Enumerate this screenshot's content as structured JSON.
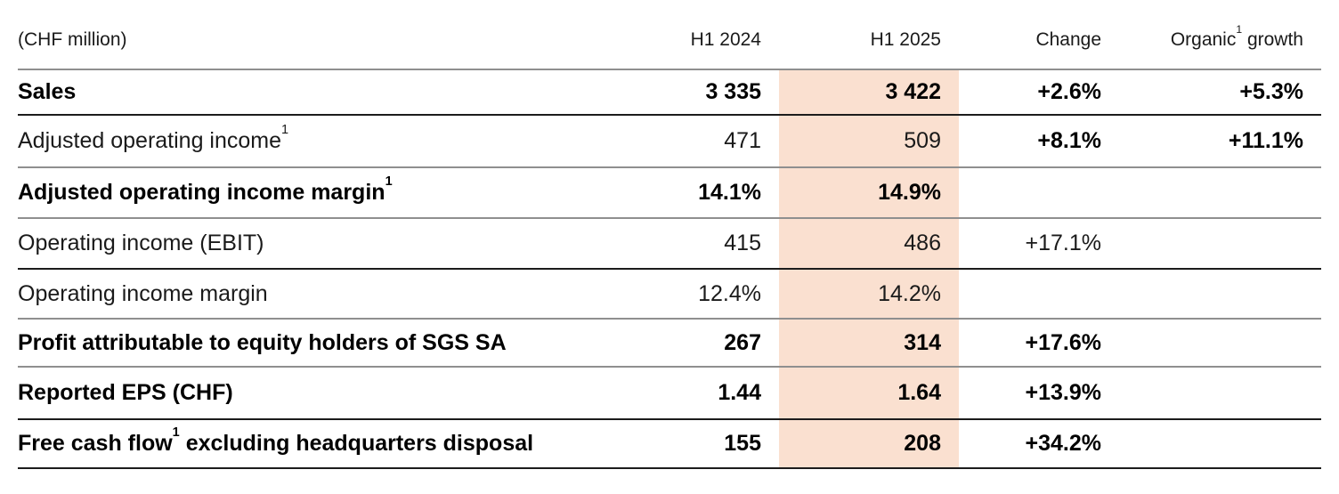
{
  "table": {
    "unit_label": "(CHF million)",
    "headers": [
      {
        "pre": "H1 2024"
      },
      {
        "pre": "H1 2025"
      },
      {
        "pre": "Change"
      },
      {
        "pre": "Organic",
        "sup": "1",
        "post": " growth"
      }
    ],
    "rows": [
      {
        "label": {
          "pre": "Sales"
        },
        "values": [
          "3 335",
          "3 422",
          "+2.6%",
          "+5.3%"
        ],
        "bold": [
          true,
          true,
          true,
          true,
          true
        ],
        "separator": "strong"
      },
      {
        "label": {
          "pre": "Adjusted operating income",
          "sup": "1"
        },
        "values": [
          "471",
          "509",
          "+8.1%",
          "+11.1%"
        ],
        "bold": [
          false,
          false,
          false,
          true,
          true
        ],
        "separator": "light"
      },
      {
        "label": {
          "pre": "Adjusted operating income margin",
          "sup": "1"
        },
        "values": [
          "14.1%",
          "14.9%",
          "",
          ""
        ],
        "bold": [
          true,
          true,
          true,
          false,
          false
        ],
        "separator": "light"
      },
      {
        "label": {
          "pre": "Operating income (EBIT)"
        },
        "values": [
          "415",
          "486",
          "+17.1%",
          ""
        ],
        "bold": [
          false,
          false,
          false,
          false,
          false
        ],
        "separator": "strong"
      },
      {
        "label": {
          "pre": "Operating income margin"
        },
        "values": [
          "12.4%",
          "14.2%",
          "",
          ""
        ],
        "bold": [
          false,
          false,
          false,
          false,
          false
        ],
        "separator": "light"
      },
      {
        "label": {
          "pre": "Profit attributable to equity holders of SGS SA"
        },
        "values": [
          "267",
          "314",
          "+17.6%",
          ""
        ],
        "bold": [
          true,
          true,
          true,
          true,
          false
        ],
        "separator": "light"
      },
      {
        "label": {
          "pre": "Reported EPS (CHF)"
        },
        "values": [
          "1.44",
          "1.64",
          "+13.9%",
          ""
        ],
        "bold": [
          true,
          true,
          true,
          true,
          false
        ],
        "separator": "strong"
      },
      {
        "label": {
          "pre": "Free cash flow",
          "sup": "1",
          "post": " excluding headquarters disposal"
        },
        "values": [
          "155",
          "208",
          "+34.2%",
          ""
        ],
        "bold": [
          true,
          true,
          true,
          true,
          false
        ],
        "separator": "strong"
      }
    ],
    "colors": {
      "highlight_band": "#fae0d0",
      "separator_strong": "#1c1c1c",
      "separator_light": "#8f8f8f",
      "text": "#000000"
    }
  },
  "chart_data": {
    "type": "table",
    "title": "(CHF million)",
    "columns": [
      "(CHF million)",
      "H1 2024",
      "H1 2025",
      "Change",
      "Organic¹ growth"
    ],
    "rows": [
      [
        "Sales",
        "3 335",
        "3 422",
        "+2.6%",
        "+5.3%"
      ],
      [
        "Adjusted operating income¹",
        "471",
        "509",
        "+8.1%",
        "+11.1%"
      ],
      [
        "Adjusted operating income margin¹",
        "14.1%",
        "14.9%",
        "",
        ""
      ],
      [
        "Operating income (EBIT)",
        "415",
        "486",
        "+17.1%",
        ""
      ],
      [
        "Operating income margin",
        "12.4%",
        "14.2%",
        "",
        ""
      ],
      [
        "Profit attributable to equity holders of SGS SA",
        "267",
        "314",
        "+17.6%",
        ""
      ],
      [
        "Reported EPS (CHF)",
        "1.44",
        "1.64",
        "+13.9%",
        ""
      ],
      [
        "Free cash flow¹ excluding headquarters disposal",
        "155",
        "208",
        "+34.2%",
        ""
      ]
    ],
    "highlighted_column": "H1 2025",
    "highlight_color": "#fae0d0",
    "footnote_marker": "1"
  }
}
